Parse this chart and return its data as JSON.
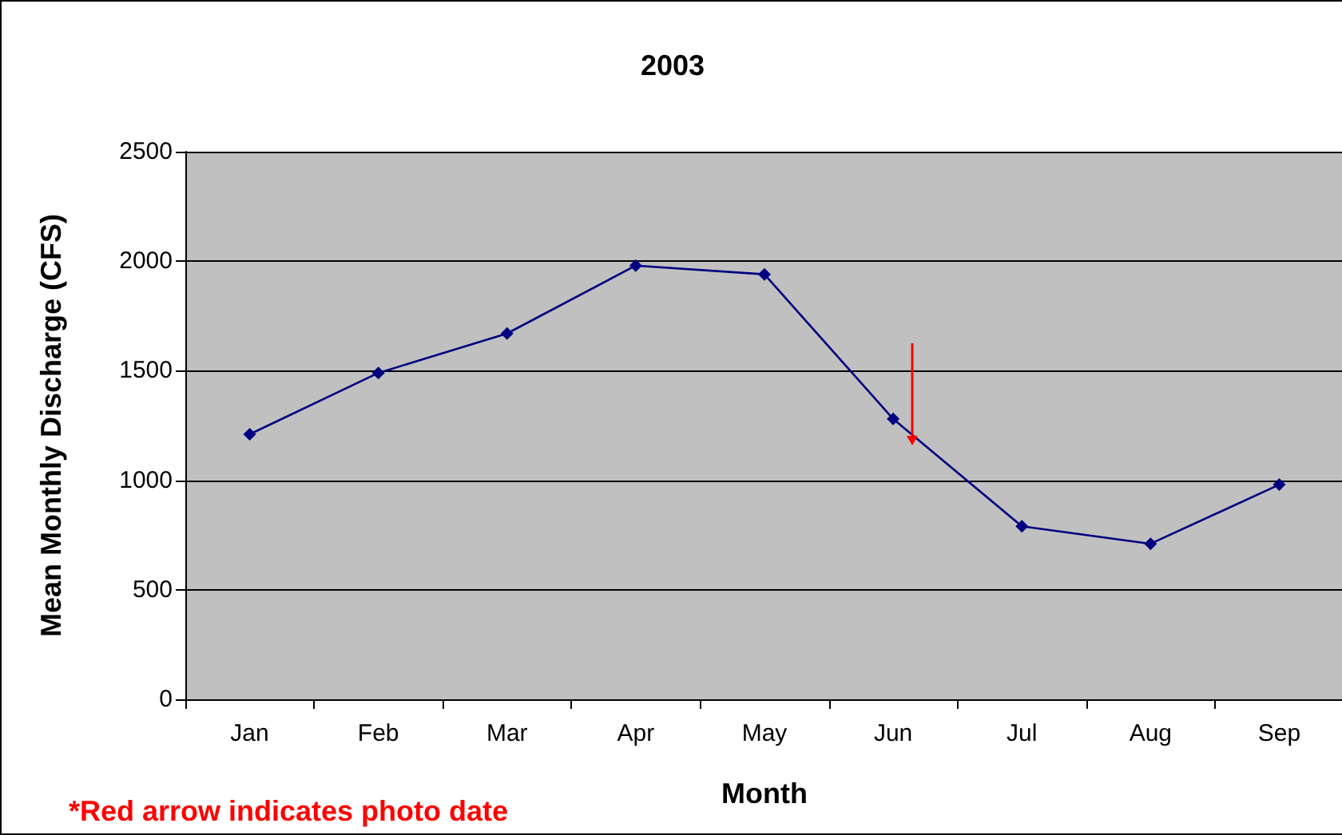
{
  "chart_data": {
    "type": "line",
    "title": "2003",
    "xlabel": "Month",
    "ylabel": "Mean Monthly Discharge (CFS)",
    "categories": [
      "Jan",
      "Feb",
      "Mar",
      "Apr",
      "May",
      "Jun",
      "Jul",
      "Aug",
      "Sep"
    ],
    "series": [
      {
        "color": "#000080",
        "values": [
          1210,
          1490,
          1670,
          1980,
          1940,
          1280,
          790,
          710,
          980
        ]
      }
    ],
    "ylim": [
      0,
      2500
    ],
    "yticks": [
      0,
      500,
      1000,
      1500,
      2000,
      2500
    ],
    "grid": "y",
    "marker": "diamond",
    "line_style": "solid",
    "annotations": [
      "*Red arrow indicates photo date"
    ]
  }
}
